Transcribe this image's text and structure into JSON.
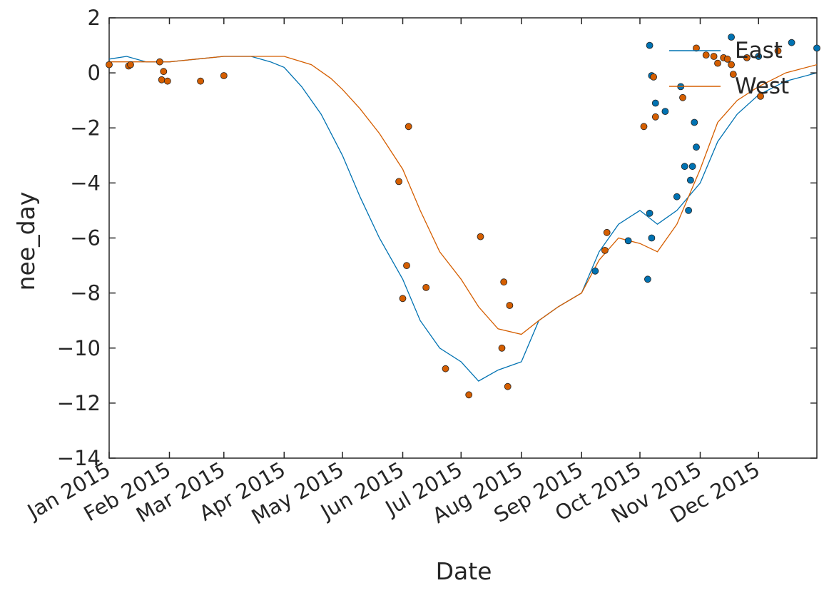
{
  "chart_data": {
    "type": "line",
    "title": "",
    "xlabel": "Date",
    "ylabel": "nee_day",
    "xlim": [
      "2015-01-01",
      "2015-12-31"
    ],
    "ylim": [
      -14,
      2
    ],
    "grid": false,
    "legend_position": "top-right",
    "x_tick_labels": [
      "Jan 2015",
      "Feb 2015",
      "Mar 2015",
      "Apr 2015",
      "May 2015",
      "Jun 2015",
      "Jul 2015",
      "Aug 2015",
      "Sep 2015",
      "Oct 2015",
      "Nov 2015",
      "Dec 2015"
    ],
    "x_ticks": [
      "2015-01-01",
      "2015-02-01",
      "2015-03-01",
      "2015-04-01",
      "2015-05-01",
      "2015-06-01",
      "2015-07-01",
      "2015-08-01",
      "2015-09-01",
      "2015-10-01",
      "2015-11-01",
      "2015-12-01"
    ],
    "y_ticks": [
      2,
      0,
      -2,
      -4,
      -6,
      -8,
      -10,
      -12,
      -14
    ],
    "y_tick_labels": [
      "2",
      "0",
      "−2",
      "−4",
      "−6",
      "−8",
      "−10",
      "−12",
      "−14"
    ],
    "series": [
      {
        "name": "East",
        "color": "#0072b2",
        "line": [
          [
            "2015-01-01",
            0.5
          ],
          [
            "2015-01-10",
            0.6
          ],
          [
            "2015-01-20",
            0.4
          ],
          [
            "2015-02-01",
            0.4
          ],
          [
            "2015-02-15",
            0.5
          ],
          [
            "2015-03-01",
            0.6
          ],
          [
            "2015-03-15",
            0.6
          ],
          [
            "2015-03-25",
            0.4
          ],
          [
            "2015-04-01",
            0.2
          ],
          [
            "2015-04-10",
            -0.5
          ],
          [
            "2015-04-20",
            -1.5
          ],
          [
            "2015-05-01",
            -3.0
          ],
          [
            "2015-05-10",
            -4.5
          ],
          [
            "2015-05-20",
            -6.0
          ],
          [
            "2015-06-01",
            -7.5
          ],
          [
            "2015-06-10",
            -9.0
          ],
          [
            "2015-06-20",
            -10.0
          ],
          [
            "2015-07-01",
            -10.5
          ],
          [
            "2015-07-10",
            -11.2
          ],
          [
            "2015-07-20",
            -10.8
          ],
          [
            "2015-08-01",
            -10.5
          ],
          [
            "2015-08-10",
            -9.0
          ],
          [
            "2015-08-20",
            -8.5
          ],
          [
            "2015-09-01",
            -8.0
          ],
          [
            "2015-09-10",
            -6.5
          ],
          [
            "2015-09-20",
            -5.5
          ],
          [
            "2015-10-01",
            -5.0
          ],
          [
            "2015-10-10",
            -5.5
          ],
          [
            "2015-10-20",
            -5.0
          ],
          [
            "2015-11-01",
            -4.0
          ],
          [
            "2015-11-10",
            -2.5
          ],
          [
            "2015-11-20",
            -1.5
          ],
          [
            "2015-12-01",
            -0.8
          ],
          [
            "2015-12-15",
            -0.3
          ],
          [
            "2015-12-31",
            0.0
          ]
        ],
        "points": [
          [
            "2015-10-06",
            1.0
          ],
          [
            "2015-10-07",
            -0.1
          ],
          [
            "2015-10-09",
            -1.1
          ],
          [
            "2015-10-14",
            -1.4
          ],
          [
            "2015-10-22",
            -0.5
          ],
          [
            "2015-10-24",
            -3.4
          ],
          [
            "2015-10-26",
            -5.0
          ],
          [
            "2015-10-27",
            -3.9
          ],
          [
            "2015-10-28",
            -3.4
          ],
          [
            "2015-10-29",
            -1.8
          ],
          [
            "2015-10-30",
            -2.7
          ],
          [
            "2015-10-20",
            -4.5
          ],
          [
            "2015-09-08",
            -7.2
          ],
          [
            "2015-09-25",
            -6.1
          ],
          [
            "2015-10-05",
            -7.5
          ],
          [
            "2015-10-06",
            -5.1
          ],
          [
            "2015-10-07",
            -6.0
          ],
          [
            "2015-11-17",
            1.3
          ],
          [
            "2015-12-01",
            0.6
          ],
          [
            "2015-12-18",
            1.1
          ],
          [
            "2015-12-31",
            0.9
          ]
        ]
      },
      {
        "name": "West",
        "color": "#d55e00",
        "line": [
          [
            "2015-01-01",
            0.4
          ],
          [
            "2015-01-15",
            0.4
          ],
          [
            "2015-02-01",
            0.4
          ],
          [
            "2015-02-15",
            0.5
          ],
          [
            "2015-03-01",
            0.6
          ],
          [
            "2015-03-15",
            0.6
          ],
          [
            "2015-04-01",
            0.6
          ],
          [
            "2015-04-15",
            0.3
          ],
          [
            "2015-04-25",
            -0.2
          ],
          [
            "2015-05-01",
            -0.6
          ],
          [
            "2015-05-10",
            -1.3
          ],
          [
            "2015-05-20",
            -2.2
          ],
          [
            "2015-06-01",
            -3.5
          ],
          [
            "2015-06-10",
            -5.0
          ],
          [
            "2015-06-20",
            -6.5
          ],
          [
            "2015-07-01",
            -7.5
          ],
          [
            "2015-07-10",
            -8.5
          ],
          [
            "2015-07-20",
            -9.3
          ],
          [
            "2015-08-01",
            -9.5
          ],
          [
            "2015-08-10",
            -9.0
          ],
          [
            "2015-08-20",
            -8.5
          ],
          [
            "2015-09-01",
            -8.0
          ],
          [
            "2015-09-10",
            -6.8
          ],
          [
            "2015-09-20",
            -6.0
          ],
          [
            "2015-10-01",
            -6.2
          ],
          [
            "2015-10-10",
            -6.5
          ],
          [
            "2015-10-20",
            -5.5
          ],
          [
            "2015-11-01",
            -3.5
          ],
          [
            "2015-11-10",
            -1.8
          ],
          [
            "2015-11-20",
            -1.0
          ],
          [
            "2015-12-01",
            -0.5
          ],
          [
            "2015-12-15",
            0.0
          ],
          [
            "2015-12-31",
            0.3
          ]
        ],
        "points": [
          [
            "2015-01-01",
            0.3
          ],
          [
            "2015-01-11",
            0.25
          ],
          [
            "2015-01-12",
            0.3
          ],
          [
            "2015-01-27",
            0.4
          ],
          [
            "2015-01-28",
            -0.25
          ],
          [
            "2015-01-29",
            0.05
          ],
          [
            "2015-01-31",
            -0.3
          ],
          [
            "2015-02-17",
            -0.3
          ],
          [
            "2015-03-01",
            -0.1
          ],
          [
            "2015-05-30",
            -3.95
          ],
          [
            "2015-06-01",
            -8.2
          ],
          [
            "2015-06-04",
            -1.95
          ],
          [
            "2015-06-03",
            -7.0
          ],
          [
            "2015-06-13",
            -7.8
          ],
          [
            "2015-06-23",
            -10.75
          ],
          [
            "2015-07-05",
            -11.7
          ],
          [
            "2015-07-11",
            -5.95
          ],
          [
            "2015-07-22",
            -10.0
          ],
          [
            "2015-07-23",
            -7.6
          ],
          [
            "2015-07-25",
            -11.4
          ],
          [
            "2015-07-26",
            -8.45
          ],
          [
            "2015-09-13",
            -6.45
          ],
          [
            "2015-09-14",
            -5.8
          ],
          [
            "2015-10-03",
            -1.95
          ],
          [
            "2015-10-08",
            -0.15
          ],
          [
            "2015-10-09",
            -1.6
          ],
          [
            "2015-10-23",
            -0.9
          ],
          [
            "2015-10-30",
            0.9
          ],
          [
            "2015-11-04",
            0.65
          ],
          [
            "2015-11-08",
            0.6
          ],
          [
            "2015-11-10",
            0.35
          ],
          [
            "2015-11-13",
            0.55
          ],
          [
            "2015-11-15",
            0.5
          ],
          [
            "2015-11-17",
            0.3
          ],
          [
            "2015-11-18",
            -0.05
          ],
          [
            "2015-11-25",
            0.55
          ],
          [
            "2015-12-02",
            -0.85
          ],
          [
            "2015-12-11",
            0.8
          ]
        ]
      }
    ]
  }
}
